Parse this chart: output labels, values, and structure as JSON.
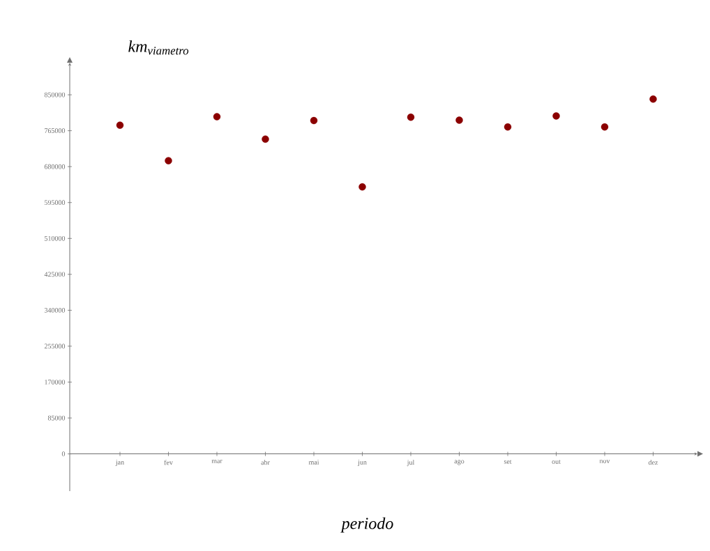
{
  "chart_data": {
    "type": "scatter",
    "ylabel": "km$_{viametro}$",
    "xlabel": "periodo",
    "categories": [
      "jan",
      "fev",
      "mar",
      "abr",
      "mai",
      "jun",
      "jul",
      "ago",
      "set",
      "out",
      "nov",
      "dez"
    ],
    "values": [
      778000,
      694000,
      798000,
      745000,
      789000,
      632000,
      797000,
      790000,
      774000,
      800000,
      774000,
      840000
    ],
    "color": "#8b0000",
    "marker": "circle",
    "ylim": [
      -88000,
      926000
    ],
    "yticks": [
      0,
      85000,
      170000,
      255000,
      340000,
      425000,
      510000,
      595000,
      680000,
      765000,
      850000
    ]
  }
}
